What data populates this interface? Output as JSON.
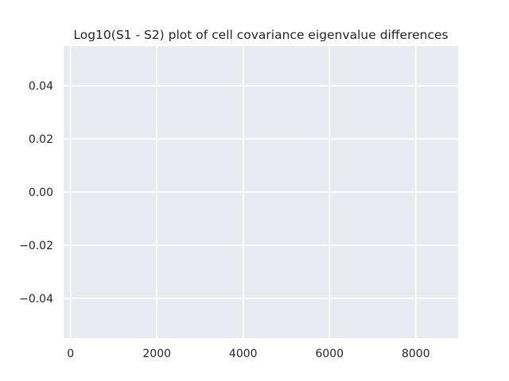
{
  "chart_data": {
    "type": "line",
    "title": "Log10(S1 - S2) plot of cell covariance eigenvalue differences",
    "xlabel": "",
    "ylabel": "",
    "xlim": [
      -160,
      8980
    ],
    "ylim": [
      -0.055,
      0.055
    ],
    "x_ticks": [
      0,
      2000,
      4000,
      6000,
      8000
    ],
    "x_tick_labels": [
      "0",
      "2000",
      "4000",
      "6000",
      "8000"
    ],
    "y_ticks": [
      0.04,
      0.02,
      0.0,
      -0.02,
      -0.04
    ],
    "y_tick_labels": [
      "0.04",
      "0.02",
      "0.00",
      "−0.02",
      "−0.04"
    ],
    "grid": true,
    "legend": "none",
    "series": [],
    "colors": {
      "plot_background": "#eaeaf2",
      "grid": "#ffffff",
      "text": "#262626",
      "axis_spine": "#ffffff"
    }
  }
}
